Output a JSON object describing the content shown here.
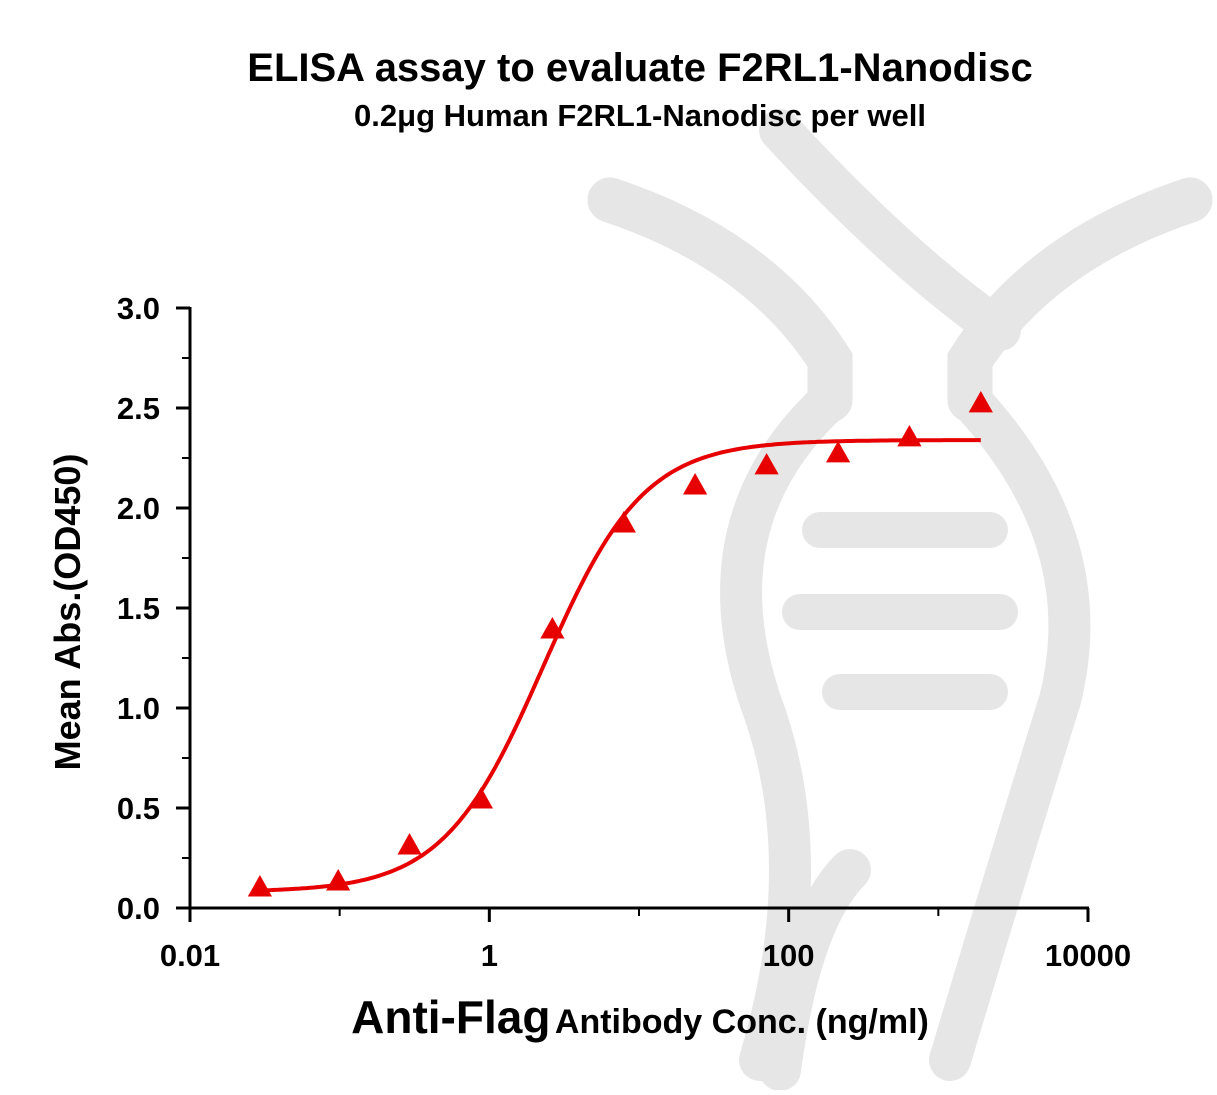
{
  "chart_data": {
    "type": "scatter",
    "title": "ELISA assay to evaluate F2RL1-Nanodisc",
    "subtitle": "0.2μg Human F2RL1-Nanodisc per well",
    "xlabel_emphasis": "Anti-Flag",
    "xlabel_rest": "Antibody Conc. (ng/ml)",
    "ylabel": "Mean Abs.(OD450)",
    "x_scale": "log",
    "xlim": [
      0.01,
      10000
    ],
    "ylim": [
      0,
      3.0
    ],
    "x_ticks": [
      0.01,
      1,
      100,
      10000
    ],
    "x_tick_labels": [
      "0.01",
      "1",
      "100",
      "10000"
    ],
    "y_ticks": [
      0,
      0.5,
      1.0,
      1.5,
      2.0,
      2.5,
      3.0
    ],
    "y_tick_labels": [
      "0.0",
      "0.5",
      "1.0",
      "1.5",
      "2.0",
      "2.5",
      "3.0"
    ],
    "grid": false,
    "marker_color": "#e60000",
    "series": [
      {
        "marker": "triangle",
        "x": [
          0.0293,
          0.0977,
          0.293,
          0.879,
          2.64,
          7.91,
          23.7,
          71.2,
          214,
          641,
          1922
        ],
        "y": [
          0.1,
          0.13,
          0.31,
          0.54,
          1.39,
          1.92,
          2.11,
          2.21,
          2.27,
          2.35,
          2.52
        ]
      }
    ],
    "fit_curve": {
      "model": "4PL",
      "bottom": 0.08,
      "top": 2.34,
      "ec50": 2.3,
      "hill": 1.3,
      "x_range": [
        0.0293,
        1922
      ]
    }
  }
}
